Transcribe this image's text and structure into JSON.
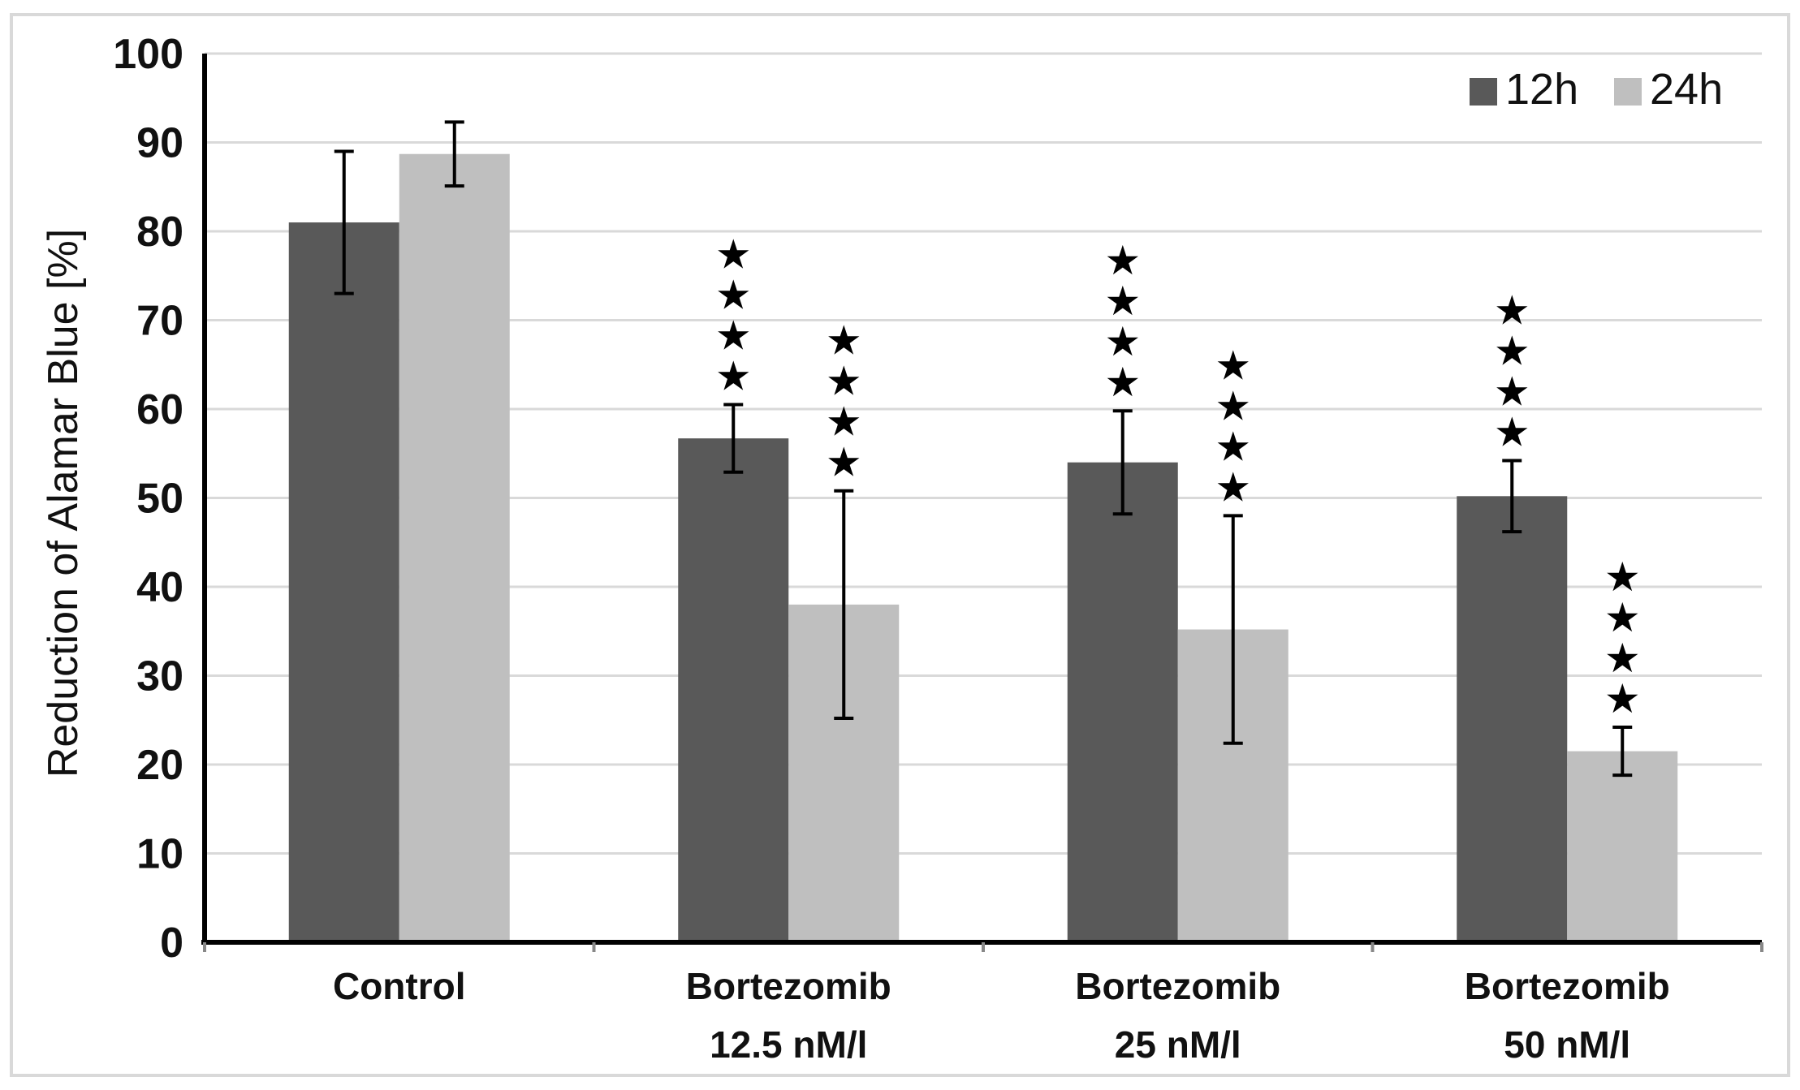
{
  "chart_data": {
    "type": "bar",
    "title": "",
    "xlabel": "",
    "ylabel": "Reduction of Alamar Blue [%]",
    "ylim": [
      0,
      100
    ],
    "yticks": [
      0,
      10,
      20,
      30,
      40,
      50,
      60,
      70,
      80,
      90,
      100
    ],
    "grid": true,
    "legend_position": "top-right",
    "categories": [
      [
        "Control"
      ],
      [
        "Bortezomib",
        "12.5 nM/l"
      ],
      [
        "Bortezomib",
        "25 nM/l"
      ],
      [
        "Bortezomib",
        "50 nM/l"
      ]
    ],
    "series": [
      {
        "name": "12h",
        "color": "#595959",
        "values": [
          81,
          56.7,
          54,
          50.2
        ],
        "error": [
          8,
          3.8,
          5.8,
          4
        ],
        "significance": [
          "",
          "★★★★",
          "★★★★",
          "★★★★"
        ]
      },
      {
        "name": "24h",
        "color": "#bfbfbf",
        "values": [
          88.7,
          38,
          35.2,
          21.5
        ],
        "error": [
          3.6,
          12.8,
          12.8,
          2.7
        ],
        "significance": [
          "",
          "★★★★",
          "★★★★",
          "★★★★"
        ]
      }
    ]
  }
}
